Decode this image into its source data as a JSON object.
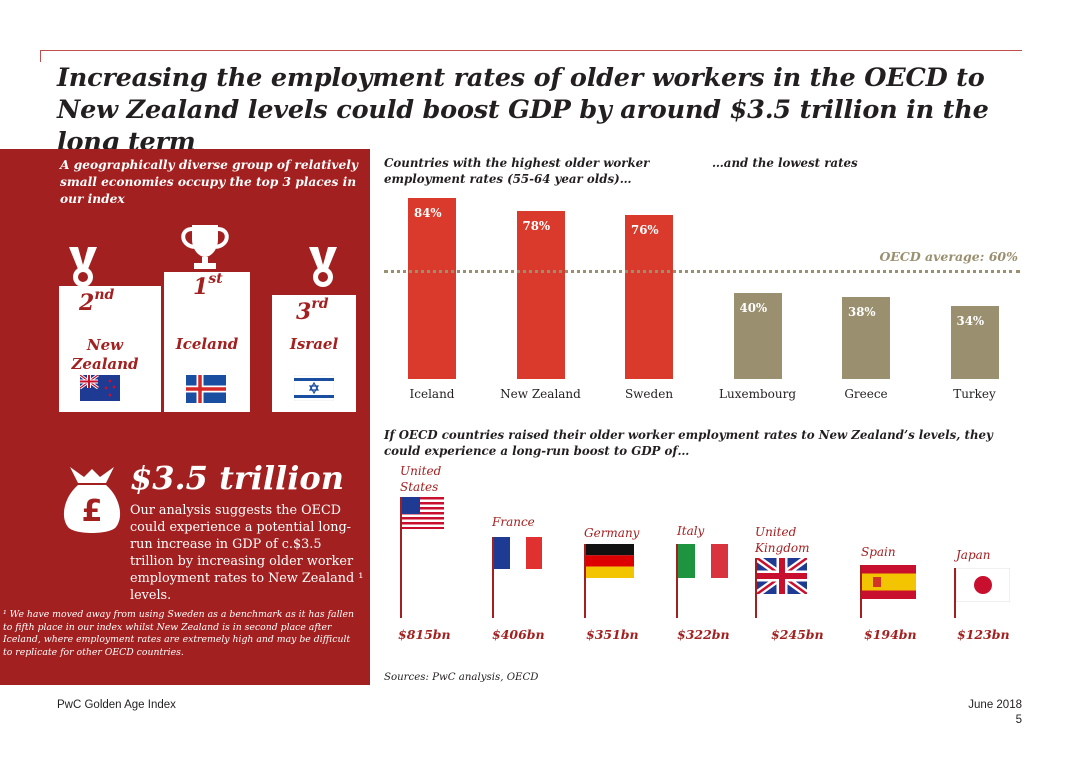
{
  "title": "Increasing the employment rates of older workers in the OECD to New Zealand levels could boost GDP by around $3.5 trillion in the long term",
  "panel": {
    "intro": "A geographically diverse group of relatively small economies occupy the top 3 places in our index",
    "podium": [
      {
        "rank_num": "2",
        "rank_suffix": "nd",
        "country": "New Zealand"
      },
      {
        "rank_num": "1",
        "rank_suffix": "st",
        "country": "Iceland"
      },
      {
        "rank_num": "3",
        "rank_suffix": "rd",
        "country": "Israel"
      }
    ],
    "amount": "$3.5 trillion",
    "amount_text": "Our analysis suggests the OECD could experience a potential long-run increase in GDP of c.$3.5 trillion by increasing older worker employment rates to New Zealand ¹ levels.",
    "footnote": "¹ We have moved away from using Sweden as a benchmark as it has fallen to fifth place in our index whilst New Zealand is in second place after Iceland, where employment rates are extremely high and may be difficult to replicate for other OECD countries.",
    "colors": {
      "panel": "#a32020"
    }
  },
  "chart_data": [
    {
      "type": "bar",
      "title_left": "Countries with the highest older worker employment rates (55-64 year olds)…",
      "title_right": "…and the lowest rates",
      "categories": [
        "Iceland",
        "New Zealand",
        "Sweden",
        "Luxembourg",
        "Greece",
        "Turkey"
      ],
      "values": [
        84,
        78,
        76,
        40,
        38,
        34
      ],
      "value_labels": [
        "84%",
        "78%",
        "76%",
        "40%",
        "38%",
        "34%"
      ],
      "group": [
        "highest",
        "highest",
        "highest",
        "lowest",
        "lowest",
        "lowest"
      ],
      "colors": {
        "highest": "#d93a2b",
        "lowest": "#9a8f6e"
      },
      "reference_line": {
        "value": 60,
        "label": "OECD average: 60%"
      },
      "ylim": [
        0,
        90
      ]
    },
    {
      "type": "table",
      "title": "If OECD countries raised their older worker employment rates to New Zealand’s levels, they could experience a long-run boost to GDP of…",
      "countries": [
        "United States",
        "France",
        "Germany",
        "Italy",
        "United Kingdom",
        "Spain",
        "Japan"
      ],
      "values_bn": [
        815,
        406,
        351,
        322,
        245,
        194,
        123
      ],
      "value_labels": [
        "$815bn",
        "$406bn",
        "$351bn",
        "$322bn",
        "$245bn",
        "$194bn",
        "$123bn"
      ]
    }
  ],
  "sources": "Sources: PwC analysis, OECD",
  "footer": {
    "left": "PwC Golden Age Index",
    "date": "June 2018",
    "page": "5"
  }
}
